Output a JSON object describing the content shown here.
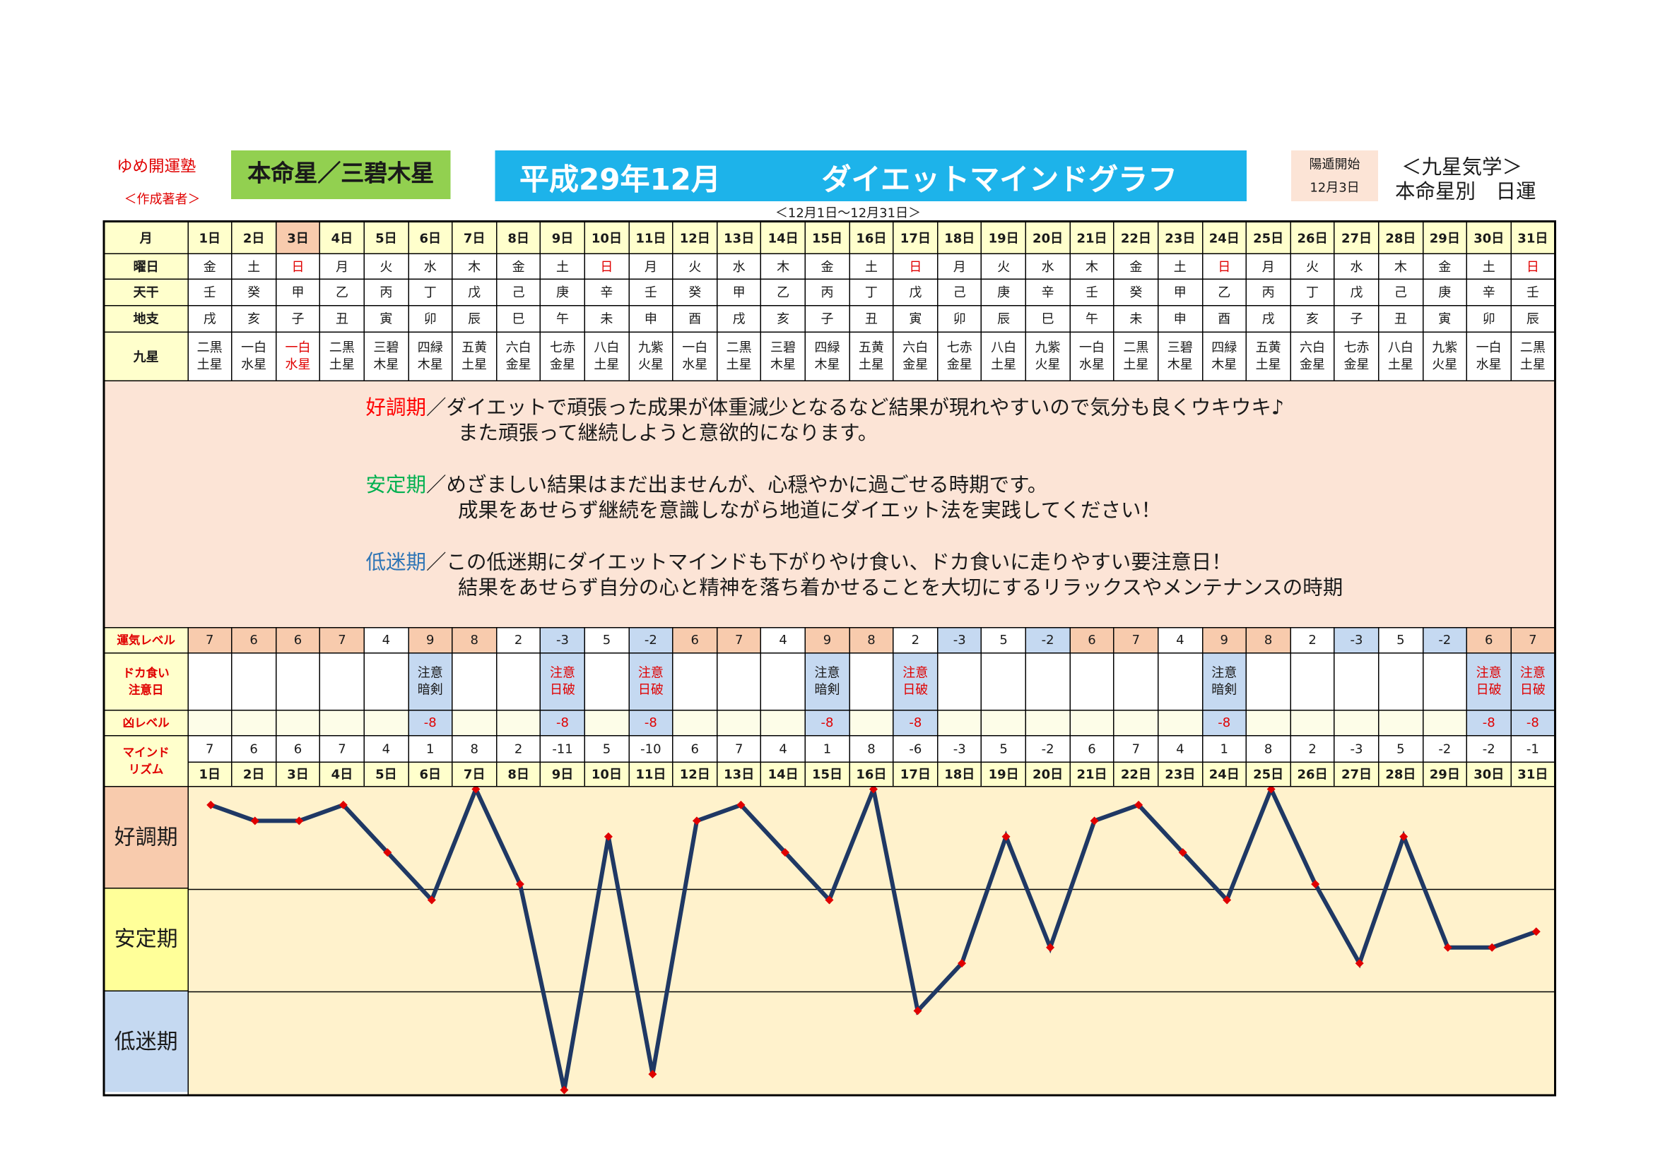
{
  "header": {
    "school": "ゆめ開運塾",
    "author": "＜作成著者＞",
    "honmei": "本命星／三碧木星",
    "title_date": "平成29年12月",
    "title": "ダイエットマインドグラフ",
    "period": "＜12月1日～12月31日＞",
    "youton_label": "陽遁開始",
    "youton_date": "12月3日",
    "kyusei_title": "＜九星気学＞",
    "kyusei_sub": "本命星別　日運"
  },
  "table": {
    "row_labels": {
      "month": "月",
      "weekday": "曜日",
      "tenkan": "天干",
      "chishi": "地支",
      "kyusei": "九星",
      "unki": "運気レベル",
      "dokagui": [
        "ドカ食い",
        "注意日"
      ],
      "kyo": "凶レベル",
      "mind": [
        "マインド",
        "リズム"
      ]
    },
    "days": [
      "1日",
      "2日",
      "3日",
      "4日",
      "5日",
      "6日",
      "7日",
      "8日",
      "9日",
      "10日",
      "11日",
      "12日",
      "13日",
      "14日",
      "15日",
      "16日",
      "17日",
      "18日",
      "19日",
      "20日",
      "21日",
      "22日",
      "23日",
      "24日",
      "25日",
      "26日",
      "27日",
      "28日",
      "29日",
      "30日",
      "31日"
    ],
    "weekdays": [
      "金",
      "土",
      "日",
      "月",
      "火",
      "水",
      "木",
      "金",
      "土",
      "日",
      "月",
      "火",
      "水",
      "木",
      "金",
      "土",
      "日",
      "月",
      "火",
      "水",
      "木",
      "金",
      "土",
      "日",
      "月",
      "火",
      "水",
      "木",
      "金",
      "土",
      "日"
    ],
    "tenkan": [
      "壬",
      "癸",
      "甲",
      "乙",
      "丙",
      "丁",
      "戊",
      "己",
      "庚",
      "辛",
      "壬",
      "癸",
      "甲",
      "乙",
      "丙",
      "丁",
      "戊",
      "己",
      "庚",
      "辛",
      "壬",
      "癸",
      "甲",
      "乙",
      "丙",
      "丁",
      "戊",
      "己",
      "庚",
      "辛",
      "壬"
    ],
    "chishi": [
      "戌",
      "亥",
      "子",
      "丑",
      "寅",
      "卯",
      "辰",
      "巳",
      "午",
      "未",
      "申",
      "酉",
      "戌",
      "亥",
      "子",
      "丑",
      "寅",
      "卯",
      "辰",
      "巳",
      "午",
      "未",
      "申",
      "酉",
      "戌",
      "亥",
      "子",
      "丑",
      "寅",
      "卯",
      "辰"
    ],
    "kyusei": [
      "二黒土星",
      "一白水星",
      "一白水星",
      "二黒土星",
      "三碧木星",
      "四緑木星",
      "五黄土星",
      "六白金星",
      "七赤金星",
      "八白土星",
      "九紫火星",
      "一白水星",
      "二黒土星",
      "三碧木星",
      "四緑木星",
      "五黄土星",
      "六白金星",
      "七赤金星",
      "八白土星",
      "九紫火星",
      "一白水星",
      "二黒土星",
      "三碧木星",
      "四緑木星",
      "五黄土星",
      "六白金星",
      "七赤金星",
      "八白土星",
      "九紫火星",
      "一白水星",
      "二黒土星"
    ],
    "unki": [
      7,
      6,
      6,
      7,
      4,
      9,
      8,
      2,
      -3,
      5,
      -2,
      6,
      7,
      4,
      9,
      8,
      2,
      -3,
      5,
      -2,
      6,
      7,
      4,
      9,
      8,
      2,
      -3,
      5,
      -2,
      6,
      7
    ],
    "warnings": [
      null,
      null,
      null,
      null,
      null,
      {
        "text": "注意暗剣",
        "color": "#1a1a1a"
      },
      null,
      null,
      {
        "text": "注意日破",
        "color": "#e00000"
      },
      null,
      {
        "text": "注意日破",
        "color": "#e00000"
      },
      null,
      null,
      null,
      {
        "text": "注意暗剣",
        "color": "#1a1a1a"
      },
      null,
      {
        "text": "注意日破",
        "color": "#e00000"
      },
      null,
      null,
      null,
      null,
      null,
      null,
      {
        "text": "注意暗剣",
        "color": "#1a1a1a"
      },
      null,
      null,
      null,
      null,
      null,
      {
        "text": "注意日破",
        "color": "#e00000"
      },
      {
        "text": "注意日破",
        "color": "#e00000"
      }
    ],
    "kyo": [
      null,
      null,
      null,
      null,
      null,
      -8,
      null,
      null,
      -8,
      null,
      -8,
      null,
      null,
      null,
      -8,
      null,
      -8,
      null,
      null,
      null,
      null,
      null,
      null,
      -8,
      null,
      null,
      null,
      null,
      null,
      -8,
      -8
    ],
    "mind": [
      7,
      6,
      6,
      7,
      4,
      1,
      8,
      2,
      -11,
      5,
      -10,
      6,
      7,
      4,
      1,
      8,
      -6,
      -3,
      5,
      -2,
      6,
      7,
      4,
      1,
      8,
      2,
      -3,
      5,
      -2,
      -2,
      -1
    ]
  },
  "descriptions": [
    {
      "label": "好調期",
      "color": "#ff0000",
      "lines": [
        "／ダイエットで頑張った成果が体重減少となるなど結果が現れやすいので気分も良くウキウキ♪",
        "また頑張って継続しようと意欲的になります。"
      ]
    },
    {
      "label": "安定期",
      "color": "#00b050",
      "lines": [
        "／めざましい結果はまだ出ませんが、心穏やかに過ごせる時期です。",
        "成果をあせらず継続を意識しながら地道にダイエット法を実践してください！"
      ]
    },
    {
      "label": "低迷期",
      "color": "#2e75b6",
      "lines": [
        "／この低迷期にダイエットマインドも下がりやけ食い、ドカ食いに走りやすい要注意日！",
        "結果をあせらず自分の心と精神を落ち着かせることを大切にするリラックスやメンテナンスの時期"
      ]
    }
  ],
  "chart": {
    "type": "line",
    "ylim": [
      -11,
      8
    ],
    "color": "#1f3864",
    "marker_color": "#e00000",
    "bands": [
      "好調期",
      "安定期",
      "低迷期"
    ]
  }
}
